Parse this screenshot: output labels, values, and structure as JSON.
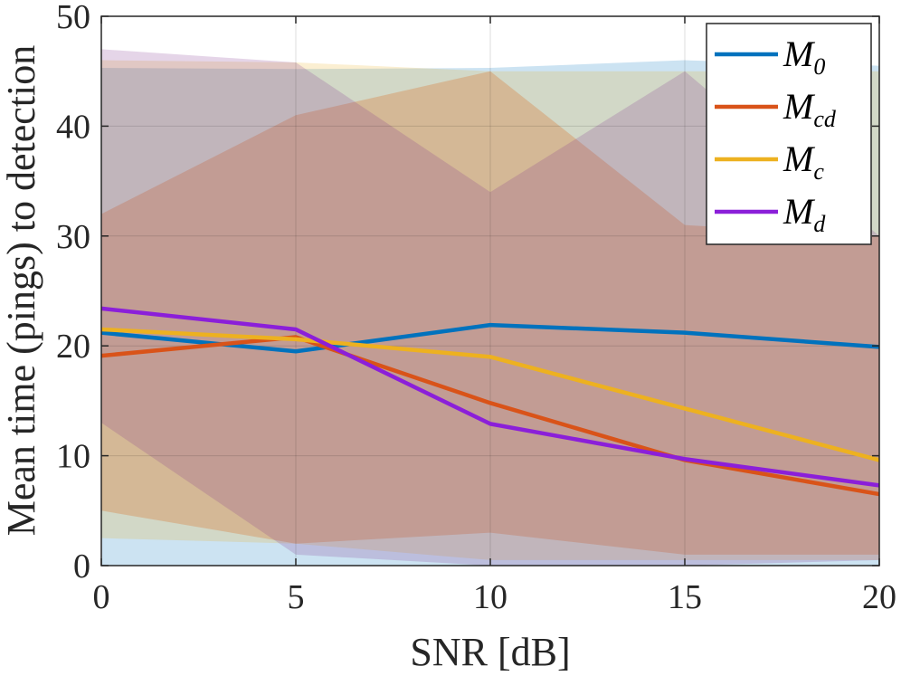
{
  "chart_data": {
    "type": "line",
    "xlabel": "SNR [dB]",
    "ylabel": "Mean time (pings) to detection",
    "xlim": [
      0,
      20
    ],
    "ylim": [
      0,
      50
    ],
    "xticks": [
      0,
      5,
      10,
      15,
      20
    ],
    "yticks": [
      0,
      10,
      20,
      30,
      40,
      50
    ],
    "grid": true,
    "legend_position": "top-right",
    "x": [
      0,
      5,
      10,
      15,
      20
    ],
    "series": [
      {
        "name": "M0",
        "legend_symbol": "M",
        "legend_subscript": "0",
        "color": "#0072BD",
        "values": [
          21.2,
          19.5,
          21.9,
          21.2,
          19.9
        ],
        "band_upper": [
          45.3,
          45.2,
          45.3,
          46.0,
          45.5
        ],
        "band_lower": [
          0,
          0,
          0,
          0,
          0
        ]
      },
      {
        "name": "Mcd",
        "legend_symbol": "M",
        "legend_subscript": "cd",
        "color": "#D95319",
        "values": [
          19.1,
          20.8,
          14.8,
          9.6,
          6.5
        ],
        "band_upper": [
          32.0,
          41.0,
          45.0,
          31.0,
          30.0
        ],
        "band_lower": [
          5.0,
          2.0,
          3.0,
          1.0,
          1.0
        ]
      },
      {
        "name": "Mc",
        "legend_symbol": "M",
        "legend_subscript": "c",
        "color": "#EDB120",
        "values": [
          21.5,
          20.6,
          19.0,
          14.3,
          9.6
        ],
        "band_upper": [
          46.0,
          45.8,
          45.0,
          45.0,
          45.0
        ],
        "band_lower": [
          2.5,
          2.0,
          0.5,
          0.5,
          0.5
        ]
      },
      {
        "name": "Md",
        "legend_symbol": "M",
        "legend_subscript": "d",
        "color": "#7E2F8E",
        "line_color": "#8B1FD9",
        "values": [
          23.4,
          21.5,
          12.9,
          9.7,
          7.3
        ],
        "band_upper": [
          47.0,
          45.8,
          34.0,
          45.0,
          30.0
        ],
        "band_lower": [
          13.0,
          1.0,
          0.0,
          0.0,
          0.5
        ]
      }
    ]
  }
}
